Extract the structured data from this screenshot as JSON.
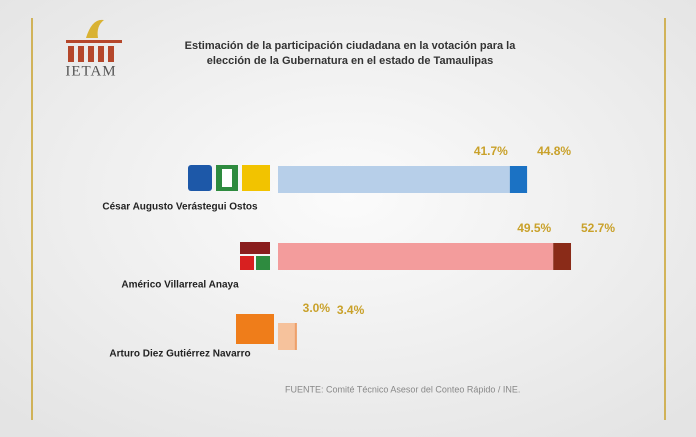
{
  "chart_data": {
    "type": "range-bar",
    "logo": "IETAM",
    "title": [
      "Estimación de la participación ciudadana en la votación para la",
      "elección de la Gubernatura en el estado de Tamaulipas"
    ],
    "categories": [
      "César Augusto Verástegui Ostos",
      "Américo Villarreal Anaya",
      "Arturo Diez Gutiérrez Navarro"
    ],
    "low": [
      41.7,
      49.5,
      3.0
    ],
    "high": [
      44.8,
      52.7,
      3.4
    ],
    "low_labels": [
      "41.7%",
      "49.5%",
      "3.0%"
    ],
    "high_labels": [
      "44.8%",
      "52.7%",
      "3.4%"
    ],
    "colors": [
      {
        "low": "#b7cfe9",
        "high": "#1b72c4"
      },
      {
        "low": "#f39c9c",
        "high": "#8a2b18"
      },
      {
        "low": "#f6c29c",
        "high": "#eea06a"
      }
    ],
    "label_color": "#c9a12a",
    "source": "FUENTE: Comité Técnico Asesor del Conteo Rápido / INE."
  }
}
